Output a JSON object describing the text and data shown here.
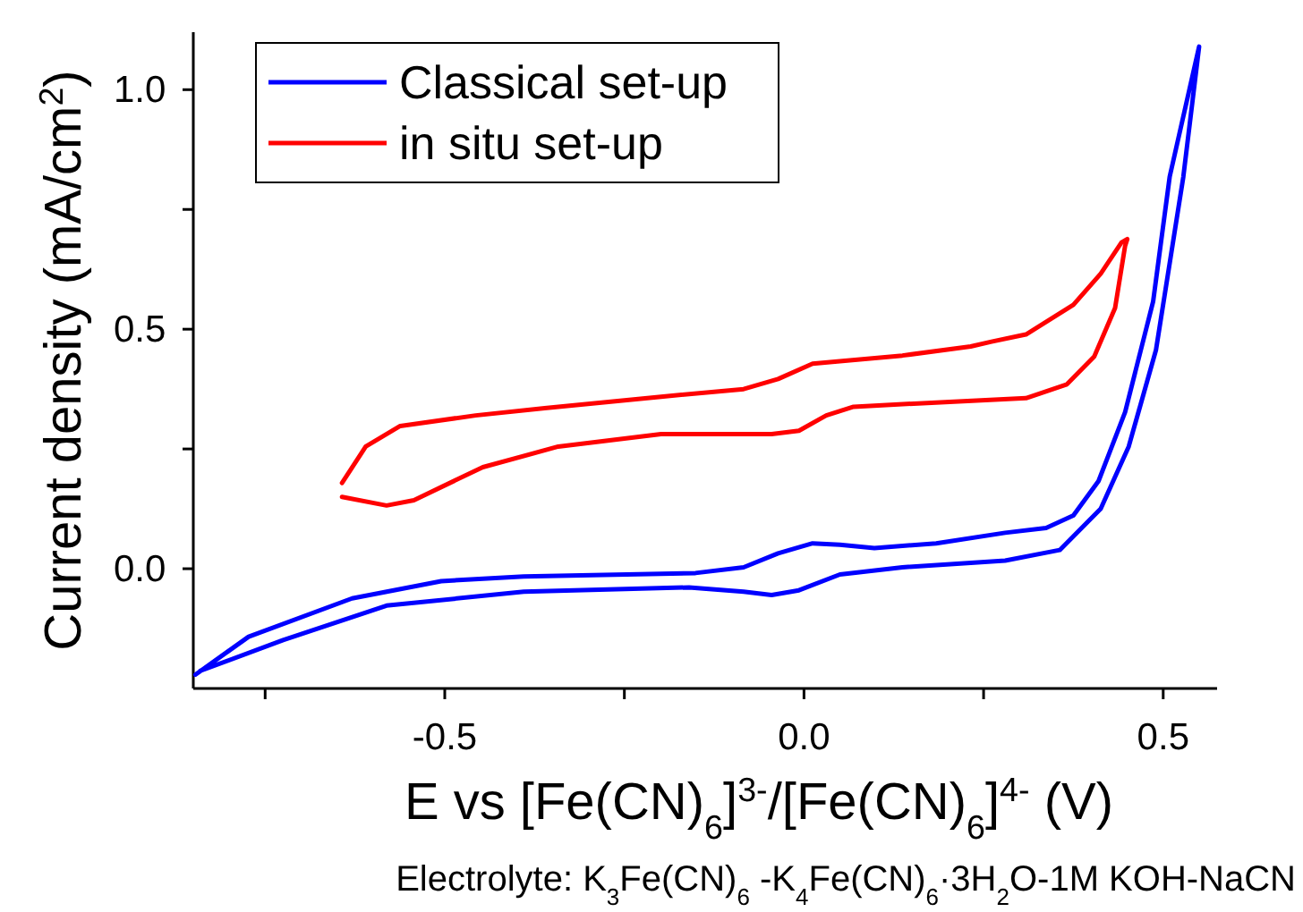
{
  "chart_data": {
    "type": "line",
    "xlabel": "E vs [Fe(CN)$_{6}$]$^{3-}$/[Fe(CN)$_{6}$]$^{4-}$ (V)",
    "ylabel": "Current density (mA/cm$^{2}$)",
    "annotations": [
      "Electrolyte: K$_{3}$Fe(CN)$_{6}$ -K$_{4}$Fe(CN)$_{6}$·3H$_{2}$O-1M KOH-NaCN"
    ],
    "xlim": [
      -0.85,
      0.575
    ],
    "ylim": [
      -0.25,
      1.12
    ],
    "xticks": [
      {
        "value": -0.75,
        "label": null
      },
      {
        "value": -0.5,
        "label": "-0.5"
      },
      {
        "value": -0.25,
        "label": null
      },
      {
        "value": 0,
        "label": "0.0"
      },
      {
        "value": 0.25,
        "label": null
      },
      {
        "value": 0.5,
        "label": "0.5"
      }
    ],
    "yticks": [
      {
        "value": 0,
        "label": "0.0"
      },
      {
        "value": 0.25,
        "label": null
      },
      {
        "value": 0.5,
        "label": "0.5"
      },
      {
        "value": 0.75,
        "label": null
      },
      {
        "value": 1,
        "label": "1.0"
      }
    ],
    "legend": "top left",
    "grid": false,
    "line_style": "solid",
    "marker": "none",
    "series": [
      {
        "name": "Classical set-up",
        "color": "#0000ff",
        "x": [
          -0.847,
          -0.773,
          -0.629,
          -0.505,
          -0.39,
          -0.151,
          -0.084,
          -0.036,
          0.012,
          0.05,
          0.098,
          0.184,
          0.28,
          0.337,
          0.375,
          0.41,
          0.447,
          0.486,
          0.509,
          0.55,
          0.528,
          0.49,
          0.452,
          0.413,
          0.356,
          0.28,
          0.137,
          0.05,
          -0.007,
          -0.045,
          -0.084,
          -0.16,
          -0.39,
          -0.581,
          -0.725,
          -0.84
        ],
        "values": [
          -0.221,
          -0.142,
          -0.062,
          -0.026,
          -0.016,
          -0.009,
          0.003,
          0.032,
          0.053,
          0.05,
          0.043,
          0.053,
          0.075,
          0.085,
          0.111,
          0.183,
          0.327,
          0.558,
          0.818,
          1.09,
          0.818,
          0.457,
          0.255,
          0.125,
          0.039,
          0.017,
          0.003,
          -0.012,
          -0.045,
          -0.055,
          -0.048,
          -0.039,
          -0.048,
          -0.077,
          -0.149,
          -0.213
        ]
      },
      {
        "name": "in situ set-up",
        "color": "#ff0000",
        "x": [
          -0.643,
          -0.61,
          -0.562,
          -0.457,
          -0.361,
          -0.199,
          -0.084,
          -0.036,
          0.012,
          0.05,
          0.137,
          0.232,
          0.261,
          0.309,
          0.375,
          0.413,
          0.442,
          0.45,
          0.447,
          0.433,
          0.404,
          0.366,
          0.309,
          0.184,
          0.069,
          0.031,
          -0.007,
          -0.045,
          -0.199,
          -0.342,
          -0.447,
          -0.543,
          -0.581,
          -0.643
        ],
        "values": [
          0.179,
          0.255,
          0.298,
          0.32,
          0.335,
          0.359,
          0.375,
          0.396,
          0.428,
          0.433,
          0.445,
          0.464,
          0.474,
          0.489,
          0.551,
          0.616,
          0.681,
          0.688,
          0.674,
          0.544,
          0.443,
          0.385,
          0.356,
          0.347,
          0.338,
          0.32,
          0.288,
          0.281,
          0.281,
          0.255,
          0.212,
          0.143,
          0.132,
          0.15
        ]
      }
    ]
  }
}
